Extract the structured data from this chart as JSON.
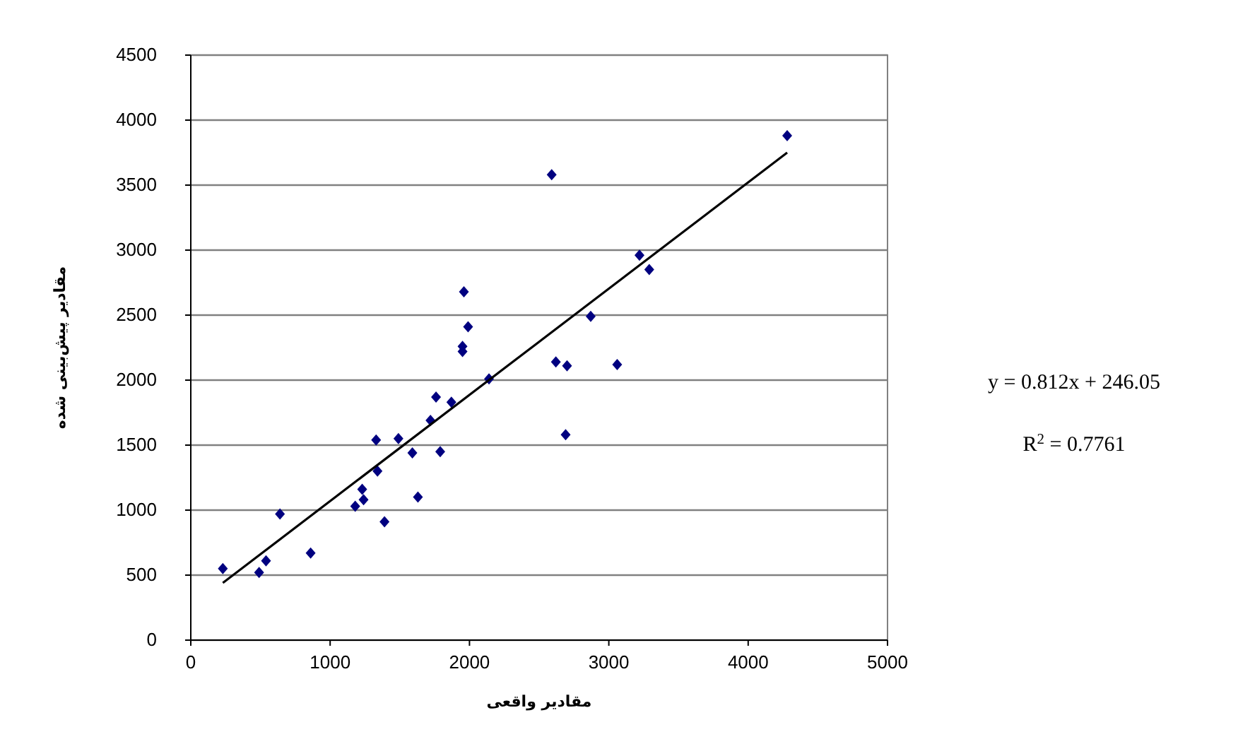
{
  "chart_data": {
    "type": "scatter",
    "xlabel": "مقادیر واقعی",
    "ylabel": "مقادیر پیش‌بینی شده",
    "xlim": [
      0,
      5000
    ],
    "ylim": [
      0,
      4500
    ],
    "xticks": [
      0,
      1000,
      2000,
      3000,
      4000,
      5000
    ],
    "yticks": [
      0,
      500,
      1000,
      1500,
      2000,
      2500,
      3000,
      3500,
      4000,
      4500
    ],
    "grid": "y",
    "series": [
      {
        "color": "#000080",
        "marker": "diamond",
        "x": [
          230,
          490,
          540,
          640,
          860,
          1180,
          1230,
          1240,
          1330,
          1340,
          1390,
          1490,
          1590,
          1630,
          1720,
          1760,
          1790,
          1870,
          1950,
          1950,
          1960,
          1990,
          2140,
          2590,
          2620,
          2700,
          2690,
          2870,
          3060,
          3220,
          3290,
          4280
        ],
        "values": [
          550,
          520,
          610,
          970,
          670,
          1030,
          1160,
          1080,
          1540,
          1300,
          910,
          1550,
          1440,
          1100,
          1690,
          1870,
          1450,
          1830,
          2260,
          2220,
          2680,
          2410,
          2010,
          3580,
          2140,
          2110,
          1580,
          2490,
          2120,
          2960,
          2850,
          3880
        ]
      },
      {
        "type": "line",
        "color": "#000000",
        "marker": "none",
        "line_style": "solid",
        "x": [
          230,
          4280
        ],
        "values": [
          440,
          3750
        ]
      }
    ],
    "annotations": [
      "y = 0.812x + 246.05",
      "R$^{2}$ =  0.7761"
    ]
  }
}
